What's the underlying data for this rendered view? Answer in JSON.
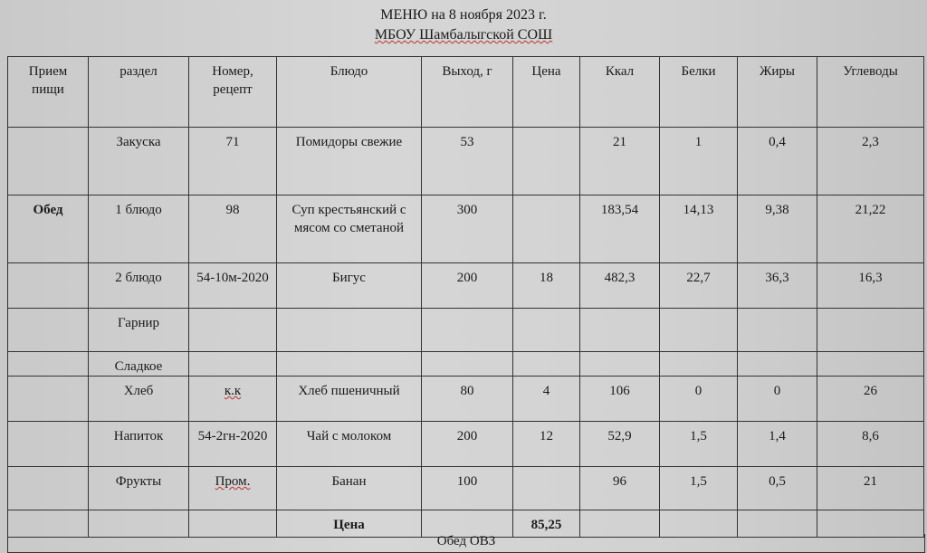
{
  "title": "МЕНЮ на 8 ноября 2023 г.",
  "school": "МБОУ Шамбалыгской СОШ",
  "headers": [
    "Прием пищи",
    "раздел",
    "Номер, рецепт",
    "Блюдо",
    "Выход, г",
    "Цена",
    "Ккал",
    "Белки",
    "Жиры",
    "Углеводы"
  ],
  "meal": "Обед",
  "rows": [
    {
      "section": "Закуска",
      "recipe": "71",
      "dish": "Помидоры свежие",
      "weight": "53",
      "price": "",
      "kcal": "21",
      "protein": "1",
      "fat": "0,4",
      "carbs": "2,3"
    },
    {
      "section": "1 блюдо",
      "recipe": "98",
      "dish": "Суп крестьянский с мясом со сметаной",
      "weight": "300",
      "price": "",
      "kcal": "183,54",
      "protein": "14,13",
      "fat": "9,38",
      "carbs": "21,22"
    },
    {
      "section": "2 блюдо",
      "recipe": "54-10м-2020",
      "dish": "Бигус",
      "weight": "200",
      "price": "18",
      "kcal": "482,3",
      "protein": "22,7",
      "fat": "36,3",
      "carbs": "16,3"
    },
    {
      "section": "Гарнир",
      "recipe": "",
      "dish": "",
      "weight": "",
      "price": "",
      "kcal": "",
      "protein": "",
      "fat": "",
      "carbs": ""
    },
    {
      "section": "Сладкое",
      "recipe": "",
      "dish": "",
      "weight": "",
      "price": "",
      "kcal": "",
      "protein": "",
      "fat": "",
      "carbs": ""
    },
    {
      "section": "Хлеб",
      "recipe": "к.к",
      "dish": "Хлеб пшеничный",
      "weight": "80",
      "price": "4",
      "kcal": "106",
      "protein": "0",
      "fat": "0",
      "carbs": "26"
    },
    {
      "section": "Напиток",
      "recipe": "54-2гн-2020",
      "dish": "Чай с молоком",
      "weight": "200",
      "price": "12",
      "kcal": "52,9",
      "protein": "1,5",
      "fat": "1,4",
      "carbs": "8,6"
    },
    {
      "section": "Фрукты",
      "recipe": "Пром.",
      "dish": "Банан",
      "weight": "100",
      "price": "",
      "kcal": "96",
      "protein": "1,5",
      "fat": "0,5",
      "carbs": "21"
    }
  ],
  "total": {
    "label": "Цена",
    "value": "85,25"
  },
  "footer": "Обед ОВЗ"
}
